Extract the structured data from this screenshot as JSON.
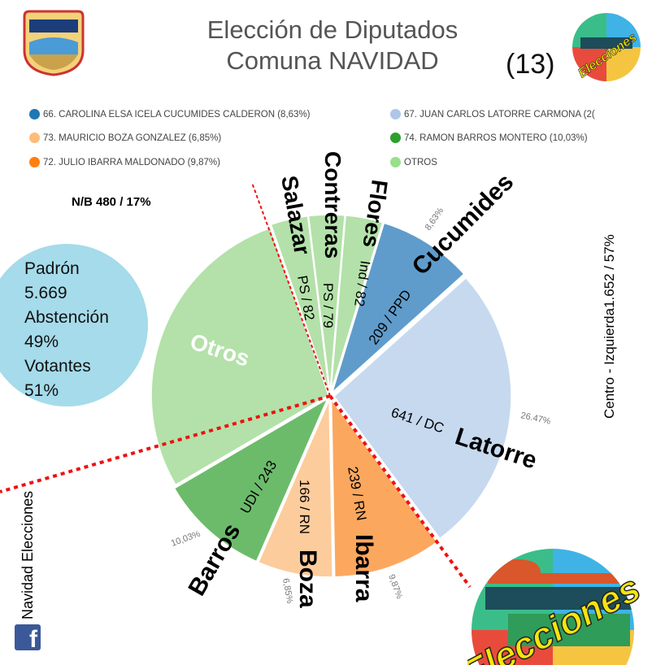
{
  "header": {
    "title_line1": "Elección de Diputados",
    "title_line2": "Comuna NAVIDAD",
    "number": "(13)"
  },
  "logos": {
    "small_logo_text": "Elecciones",
    "big_logo_text": "Elecciones"
  },
  "legend": [
    {
      "label": "66. CAROLINA ELSA ICELA CUCUMIDES CALDERON (8,63%)",
      "color": "#1f77b4"
    },
    {
      "label": "67. JUAN CARLOS LATORRE CARMONA (2(",
      "color": "#aec7e8"
    },
    {
      "label": "73. MAURICIO BOZA GONZALEZ (6,85%)",
      "color": "#ffbb78"
    },
    {
      "label": "74. RAMON BARROS MONTERO (10,03%)",
      "color": "#2ca02c"
    },
    {
      "label": "72. JULIO IBARRA MALDONADO (9,87%)",
      "color": "#ff7f0e"
    },
    {
      "label": "OTROS",
      "color": "#98df8a"
    }
  ],
  "stats": {
    "nb": "N/B 480 / 17%",
    "padron_label": "Padrón",
    "padron_value": "5.669",
    "abstencion_label": "Abstención",
    "abstencion_value": "49%",
    "votantes_label": "Votantes",
    "votantes_value": "51%"
  },
  "side": {
    "left_vertical": "Navidad Elecciones",
    "right_vertical": "Centro - Izquierda1.652 / 57%"
  },
  "chart_data": {
    "type": "pie",
    "title": "Elección de Diputados Comuna NAVIDAD",
    "slices": [
      {
        "name": "Cucumides",
        "detail": "209 / PPD",
        "votes": 209,
        "percent": 8.63,
        "pct_label": "8,63%",
        "color": "#5f9ccb"
      },
      {
        "name": "Latorre",
        "detail": "641 / DC",
        "votes": 641,
        "percent": 26.47,
        "pct_label": "26.47%",
        "color": "#c6d9ef"
      },
      {
        "name": "Ibarra",
        "detail": "239 / RN",
        "votes": 239,
        "percent": 9.87,
        "pct_label": "9,87%",
        "color": "#fca75e"
      },
      {
        "name": "Boza",
        "detail": "166 / RN",
        "votes": 166,
        "percent": 6.85,
        "pct_label": "6,85%",
        "color": "#fdcc9c"
      },
      {
        "name": "Barros",
        "detail": "UDI / 243",
        "votes": 243,
        "percent": 10.03,
        "pct_label": "10,03%",
        "color": "#6cbb6b"
      },
      {
        "name": "Otros",
        "detail": "",
        "votes": null,
        "percent": 28.1,
        "pct_label": "",
        "color": "#b3e1a9"
      },
      {
        "name": "Salazar",
        "detail": "PS / 82",
        "votes": 82,
        "percent": 3.39,
        "pct_label": "",
        "color": "#b3e1a9"
      },
      {
        "name": "Contreras",
        "detail": "PS / 79",
        "votes": 79,
        "percent": 3.26,
        "pct_label": "",
        "color": "#b3e1a9"
      },
      {
        "name": "Flores",
        "detail": "Ind / 82",
        "votes": 82,
        "percent": 3.39,
        "pct_label": "",
        "color": "#b3e1a9"
      }
    ],
    "start_angle_deg": 17
  }
}
